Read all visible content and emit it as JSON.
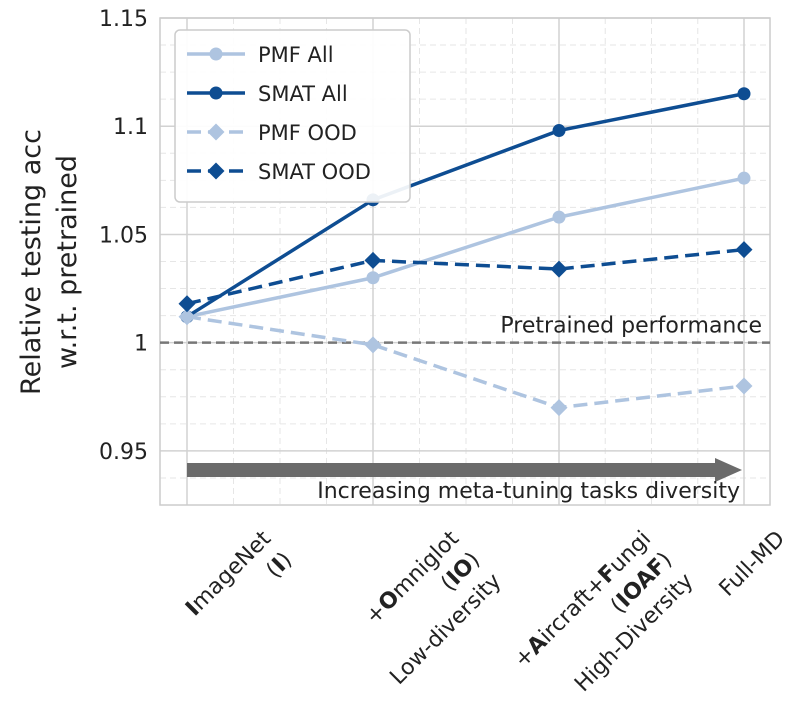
{
  "chart_data": {
    "type": "line",
    "categories": [
      [
        "ImageNet",
        "(I)"
      ],
      [
        "+Omniglot",
        "(IO)",
        "Low-diversity"
      ],
      [
        "+Aircraft+Fungi",
        "(IOAF)",
        "High-Diversity"
      ],
      [
        "Full-MD"
      ]
    ],
    "ylabel": [
      "Relative testing acc",
      "w.r.t. pretrained"
    ],
    "ylim": [
      0.925,
      1.15
    ],
    "yticks": [
      "0.95",
      "1",
      "1.05",
      "1.1",
      "1.15"
    ],
    "grid": true,
    "legend_position": "top-left",
    "series": [
      {
        "name": "PMF All",
        "values": [
          1.012,
          1.03,
          1.058,
          1.076
        ],
        "color": "#aec4e0",
        "dash": "solid",
        "marker": "circle"
      },
      {
        "name": "SMAT All",
        "values": [
          1.012,
          1.066,
          1.098,
          1.115
        ],
        "color": "#0e4d92",
        "dash": "solid",
        "marker": "circle"
      },
      {
        "name": "PMF OOD",
        "values": [
          1.012,
          0.999,
          0.97,
          0.98
        ],
        "color": "#aec4e0",
        "dash": "dashed",
        "marker": "diamond"
      },
      {
        "name": "SMAT OOD",
        "values": [
          1.018,
          1.038,
          1.034,
          1.043
        ],
        "color": "#0e4d92",
        "dash": "dashed",
        "marker": "diamond"
      }
    ],
    "reference_line": {
      "value": 1.0,
      "label": "Pretrained performance",
      "color": "#777777"
    },
    "arrow_annotation": {
      "label": "Increasing meta-tuning tasks diversity",
      "color": "#6b6b6b"
    }
  }
}
